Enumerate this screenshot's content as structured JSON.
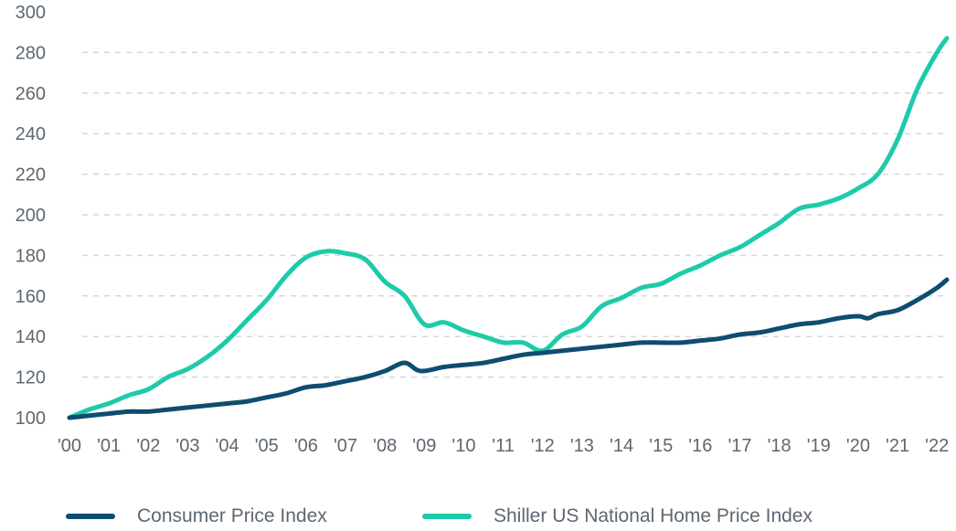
{
  "chart_data": {
    "type": "line",
    "ylim": [
      100,
      300
    ],
    "yticks": [
      100,
      120,
      140,
      160,
      180,
      200,
      220,
      240,
      260,
      280,
      300
    ],
    "xlim": [
      2000,
      2022.25
    ],
    "xtick_values": [
      2000,
      2001,
      2002,
      2003,
      2004,
      2005,
      2006,
      2007,
      2008,
      2009,
      2010,
      2011,
      2012,
      2013,
      2014,
      2015,
      2016,
      2017,
      2018,
      2019,
      2020,
      2021,
      2022
    ],
    "xtick_labels": [
      "'00",
      "'01",
      "'02",
      "'03",
      "'04",
      "'05",
      "'06",
      "'07",
      "'08",
      "'09",
      "'10",
      "'11",
      "'12",
      "'13",
      "'14",
      "'15",
      "'16",
      "'17",
      "'18",
      "'19",
      "'20",
      "'21",
      "'22"
    ],
    "grid": "horizontal dashed",
    "legend_position": "bottom",
    "series": [
      {
        "name": "Consumer Price Index",
        "color": "#0e4d70",
        "points": [
          [
            2000.0,
            100
          ],
          [
            2000.5,
            101
          ],
          [
            2001.0,
            102
          ],
          [
            2001.5,
            103
          ],
          [
            2002.0,
            103
          ],
          [
            2002.5,
            104
          ],
          [
            2003.0,
            105
          ],
          [
            2003.5,
            106
          ],
          [
            2004.0,
            107
          ],
          [
            2004.5,
            108
          ],
          [
            2005.0,
            110
          ],
          [
            2005.5,
            112
          ],
          [
            2006.0,
            115
          ],
          [
            2006.5,
            116
          ],
          [
            2007.0,
            118
          ],
          [
            2007.5,
            120
          ],
          [
            2008.0,
            123
          ],
          [
            2008.5,
            127
          ],
          [
            2008.9,
            123
          ],
          [
            2009.5,
            125
          ],
          [
            2010.0,
            126
          ],
          [
            2010.5,
            127
          ],
          [
            2011.0,
            129
          ],
          [
            2011.5,
            131
          ],
          [
            2012.0,
            132
          ],
          [
            2012.5,
            133
          ],
          [
            2013.0,
            134
          ],
          [
            2013.5,
            135
          ],
          [
            2014.0,
            136
          ],
          [
            2014.5,
            137
          ],
          [
            2015.0,
            137
          ],
          [
            2015.5,
            137
          ],
          [
            2016.0,
            138
          ],
          [
            2016.5,
            139
          ],
          [
            2017.0,
            141
          ],
          [
            2017.5,
            142
          ],
          [
            2018.0,
            144
          ],
          [
            2018.5,
            146
          ],
          [
            2019.0,
            147
          ],
          [
            2019.5,
            149
          ],
          [
            2020.0,
            150
          ],
          [
            2020.25,
            149
          ],
          [
            2020.5,
            151
          ],
          [
            2021.0,
            153
          ],
          [
            2021.5,
            158
          ],
          [
            2022.0,
            164
          ],
          [
            2022.25,
            168
          ]
        ]
      },
      {
        "name": "Shiller US National Home Price Index",
        "color": "#1ecba9",
        "points": [
          [
            2000.0,
            100
          ],
          [
            2000.5,
            104
          ],
          [
            2001.0,
            107
          ],
          [
            2001.5,
            111
          ],
          [
            2002.0,
            114
          ],
          [
            2002.5,
            120
          ],
          [
            2003.0,
            124
          ],
          [
            2003.5,
            130
          ],
          [
            2004.0,
            138
          ],
          [
            2004.5,
            148
          ],
          [
            2005.0,
            158
          ],
          [
            2005.5,
            170
          ],
          [
            2006.0,
            179
          ],
          [
            2006.5,
            182
          ],
          [
            2007.0,
            181
          ],
          [
            2007.5,
            178
          ],
          [
            2008.0,
            167
          ],
          [
            2008.5,
            160
          ],
          [
            2009.0,
            146
          ],
          [
            2009.5,
            147
          ],
          [
            2010.0,
            143
          ],
          [
            2010.5,
            140
          ],
          [
            2011.0,
            137
          ],
          [
            2011.5,
            137
          ],
          [
            2012.0,
            133
          ],
          [
            2012.5,
            141
          ],
          [
            2013.0,
            145
          ],
          [
            2013.5,
            155
          ],
          [
            2014.0,
            159
          ],
          [
            2014.5,
            164
          ],
          [
            2015.0,
            166
          ],
          [
            2015.5,
            171
          ],
          [
            2016.0,
            175
          ],
          [
            2016.5,
            180
          ],
          [
            2017.0,
            184
          ],
          [
            2017.5,
            190
          ],
          [
            2018.0,
            196
          ],
          [
            2018.5,
            203
          ],
          [
            2019.0,
            205
          ],
          [
            2019.5,
            208
          ],
          [
            2020.0,
            213
          ],
          [
            2020.5,
            220
          ],
          [
            2021.0,
            237
          ],
          [
            2021.5,
            262
          ],
          [
            2022.0,
            280
          ],
          [
            2022.25,
            287
          ]
        ]
      }
    ]
  },
  "legend": {
    "items": [
      {
        "label": "Consumer Price Index",
        "color": "#0e4d70"
      },
      {
        "label": "Shiller US National Home Price Index",
        "color": "#1ecba9"
      }
    ]
  }
}
